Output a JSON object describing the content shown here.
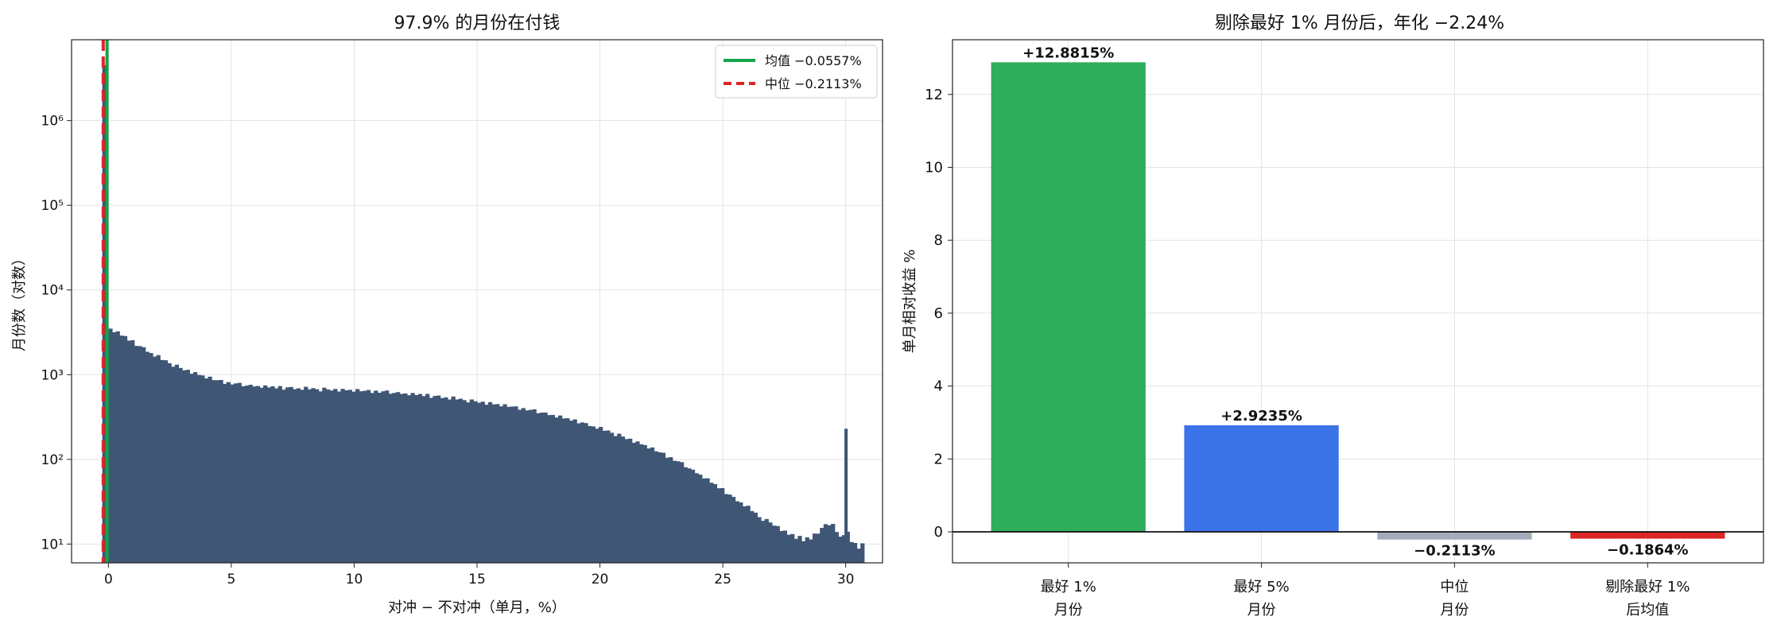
{
  "chart_data": [
    {
      "type": "histogram",
      "title": "97.9% 的月份在付钱",
      "xlabel": "对冲 − 不对冲（单月，%）",
      "ylabel": "月份数（对数）",
      "y_scale": "log",
      "xlim": [
        -1.5,
        31.5
      ],
      "ylim": [
        6,
        9000000
      ],
      "x_ticks": [
        0,
        5,
        10,
        15,
        20,
        25,
        30
      ],
      "y_ticks": [
        {
          "value": 10,
          "label": "10¹"
        },
        {
          "value": 100,
          "label": "10²"
        },
        {
          "value": 1000,
          "label": "10³"
        },
        {
          "value": 10000,
          "label": "10⁴"
        },
        {
          "value": 100000,
          "label": "10⁵"
        },
        {
          "value": 1000000,
          "label": "10⁶"
        }
      ],
      "grid": true,
      "bar_color": "#3f5675",
      "bins": {
        "start": 0.0,
        "width": 0.15,
        "tall_bars": [
          {
            "x0": -0.25,
            "x1": -0.1,
            "value": 4500000
          },
          {
            "x0": -0.1,
            "x1": 0.0,
            "value": 6000000
          }
        ],
        "counts": [
          3500,
          3300,
          3150,
          2950,
          2800,
          2600,
          2450,
          2300,
          2150,
          2050,
          1920,
          1800,
          1700,
          1620,
          1520,
          1450,
          1380,
          1320,
          1260,
          1200,
          1160,
          1120,
          1080,
          1040,
          1000,
          970,
          940,
          910,
          880,
          860,
          840,
          820,
          800,
          790,
          780,
          770,
          760,
          750,
          745,
          740,
          735,
          730,
          725,
          720,
          715,
          710,
          705,
          700,
          700,
          695,
          695,
          690,
          690,
          685,
          685,
          680,
          680,
          675,
          675,
          670,
          670,
          665,
          665,
          660,
          660,
          655,
          655,
          650,
          650,
          645,
          640,
          640,
          635,
          630,
          630,
          625,
          620,
          615,
          610,
          605,
          600,
          595,
          590,
          585,
          580,
          575,
          570,
          560,
          555,
          550,
          545,
          540,
          530,
          525,
          520,
          510,
          505,
          500,
          490,
          485,
          480,
          470,
          465,
          460,
          450,
          445,
          440,
          430,
          425,
          420,
          410,
          405,
          395,
          390,
          380,
          375,
          365,
          360,
          350,
          340,
          335,
          325,
          320,
          310,
          300,
          295,
          285,
          280,
          270,
          260,
          255,
          245,
          240,
          230,
          222,
          215,
          208,
          200,
          193,
          186,
          179,
          172,
          165,
          158,
          152,
          146,
          140,
          133,
          127,
          121,
          116,
          110,
          104,
          99,
          94,
          89,
          84,
          79,
          74,
          70,
          66,
          62,
          58,
          54,
          50,
          47,
          44,
          41,
          38,
          35,
          33,
          31,
          29,
          27,
          25,
          23,
          21,
          20,
          19,
          18,
          17,
          16,
          15,
          14,
          13,
          13,
          12,
          12,
          11,
          12,
          11,
          14,
          13,
          16,
          17,
          16,
          18,
          14,
          12,
          13,
          14,
          11,
          10,
          9,
          10
        ],
        "noise": [
          1.0,
          0.96,
          1.03,
          0.98,
          1.02,
          0.97,
          1.04,
          0.95,
          1.01,
          1.03,
          0.97,
          1.0,
          0.96,
          1.05,
          0.98,
          1.02,
          0.99,
          0.94,
          1.04,
          1.0,
          0.97,
          1.02,
          0.95,
          1.03,
          0.99,
          1.01,
          0.96,
          1.04,
          0.98,
          1.0,
          1.03,
          0.95,
          1.02,
          0.97,
          1.01,
          1.04,
          0.96,
          0.99,
          1.02,
          0.98
        ],
        "spike_at_end": {
          "x0": 29.95,
          "x1": 30.0,
          "value": 230
        }
      },
      "lines": [
        {
          "name": "均值 −0.0557%",
          "x": -0.0557,
          "color": "#16a34a",
          "style": "solid"
        },
        {
          "name": "中位 −0.2113%",
          "x": -0.2113,
          "color": "#dc2626",
          "style": "dashed"
        }
      ],
      "legend": "top-right"
    },
    {
      "type": "bar",
      "title": "剔除最好 1% 月份后，年化 −2.24%",
      "ylabel": "单月相对收益 %",
      "xlabel": "",
      "ylim": [
        -0.85,
        13.5
      ],
      "y_ticks": [
        0,
        2,
        4,
        6,
        8,
        10,
        12
      ],
      "grid": true,
      "categories": [
        {
          "line1": "最好 1%",
          "line2": "月份"
        },
        {
          "line1": "最好 5%",
          "line2": "月份"
        },
        {
          "line1": "中位",
          "line2": "月份"
        },
        {
          "line1": "剔除最好 1%",
          "line2": "后均值"
        }
      ],
      "values": [
        12.8815,
        2.9235,
        -0.2113,
        -0.1864
      ],
      "data_labels": [
        "+12.8815%",
        "+2.9235%",
        "−0.2113%",
        "−0.1864%"
      ],
      "colors": [
        "#2ead5a",
        "#3b73e8",
        "#a3acba",
        "#dc2626"
      ]
    }
  ]
}
